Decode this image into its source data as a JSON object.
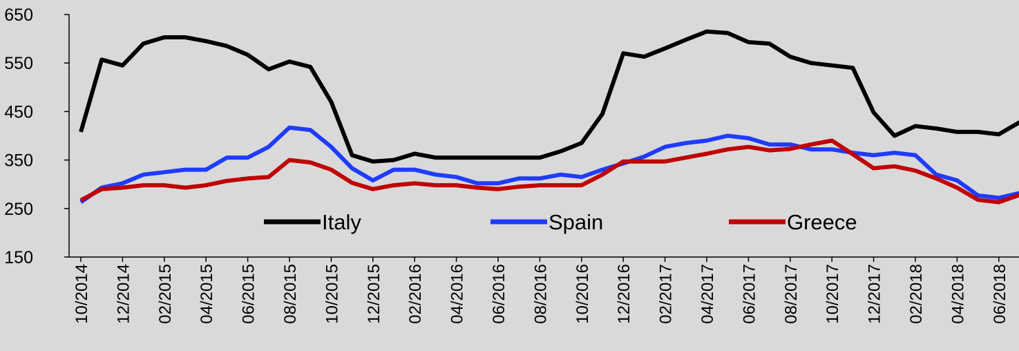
{
  "chart_data": {
    "type": "line",
    "categories": [
      "10/2014",
      null,
      "12/2014",
      null,
      "02/2015",
      null,
      "04/2015",
      null,
      "06/2015",
      null,
      "08/2015",
      null,
      "10/2015",
      null,
      "12/2015",
      null,
      "02/2016",
      null,
      "04/2016",
      null,
      "06/2016",
      null,
      "08/2016",
      null,
      "10/2016",
      null,
      "12/2016",
      null,
      "02/2017",
      null,
      "04/2017",
      null,
      "06/2017",
      null,
      "08/2017",
      null,
      "10/2017",
      null,
      "12/2017",
      null,
      "02/2018",
      null,
      "04/2018",
      null,
      "06/2018",
      null
    ],
    "series": [
      {
        "name": "Italy",
        "color": "#000000",
        "values": [
          408,
          557,
          545,
          590,
          603,
          603,
          595,
          585,
          567,
          537,
          553,
          542,
          470,
          360,
          347,
          350,
          363,
          355,
          355,
          355,
          355,
          355,
          355,
          368,
          385,
          445,
          570,
          563,
          580,
          598,
          615,
          612,
          593,
          590,
          563,
          550,
          545,
          540,
          448,
          400,
          420,
          415,
          408,
          408,
          403,
          428
        ]
      },
      {
        "name": "Spain",
        "color": "#1f3cff",
        "values": [
          263,
          293,
          302,
          320,
          325,
          330,
          330,
          355,
          355,
          377,
          417,
          412,
          377,
          333,
          308,
          330,
          330,
          320,
          315,
          302,
          302,
          312,
          312,
          320,
          315,
          330,
          343,
          357,
          377,
          385,
          390,
          400,
          395,
          382,
          382,
          372,
          372,
          365,
          360,
          365,
          360,
          320,
          308,
          277,
          272,
          282
        ]
      },
      {
        "name": "Greece",
        "color": "#c00000",
        "values": [
          267,
          290,
          293,
          298,
          298,
          293,
          298,
          307,
          312,
          315,
          350,
          345,
          330,
          303,
          290,
          298,
          302,
          298,
          298,
          293,
          290,
          295,
          298,
          298,
          298,
          320,
          347,
          347,
          347,
          355,
          363,
          372,
          377,
          370,
          373,
          382,
          390,
          362,
          333,
          337,
          328,
          312,
          293,
          268,
          263,
          278
        ]
      }
    ],
    "ylim": [
      150,
      650
    ],
    "yticks": [
      150,
      250,
      350,
      450,
      550,
      650
    ]
  }
}
